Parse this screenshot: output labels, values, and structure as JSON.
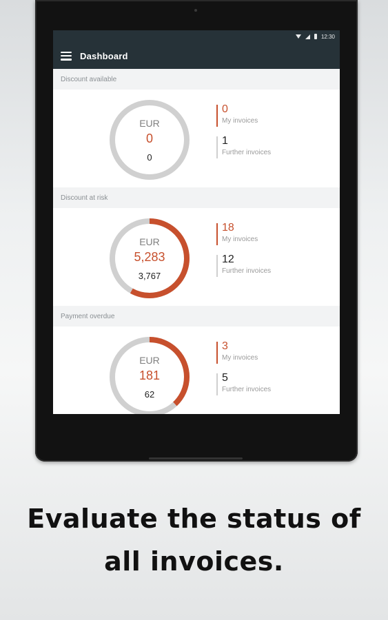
{
  "status_bar": {
    "time": "12:30"
  },
  "app_bar": {
    "title": "Dashboard"
  },
  "sections": [
    {
      "title": "Discount available",
      "currency": "EUR",
      "amount": "0",
      "sub_amount": "0",
      "my_invoices": "0",
      "my_invoices_label": "My invoices",
      "further_invoices": "1",
      "further_invoices_label": "Further invoices",
      "share": 0.0
    },
    {
      "title": "Discount at risk",
      "currency": "EUR",
      "amount": "5,283",
      "sub_amount": "3,767",
      "my_invoices": "18",
      "my_invoices_label": "My invoices",
      "further_invoices": "12",
      "further_invoices_label": "Further invoices",
      "share": 0.58
    },
    {
      "title": "Payment overdue",
      "currency": "EUR",
      "amount": "181",
      "sub_amount": "62",
      "my_invoices": "3",
      "my_invoices_label": "My invoices",
      "further_invoices": "5",
      "further_invoices_label": "Further invoices",
      "share": 0.38
    }
  ],
  "caption": {
    "line1": "Evaluate the status of",
    "line2": "all invoices."
  },
  "colors": {
    "accent": "#c7502d",
    "track": "#d0d0d0",
    "appbar": "#263238"
  },
  "icons": [
    "menu-icon",
    "wifi-icon",
    "signal-icon",
    "battery-icon"
  ]
}
